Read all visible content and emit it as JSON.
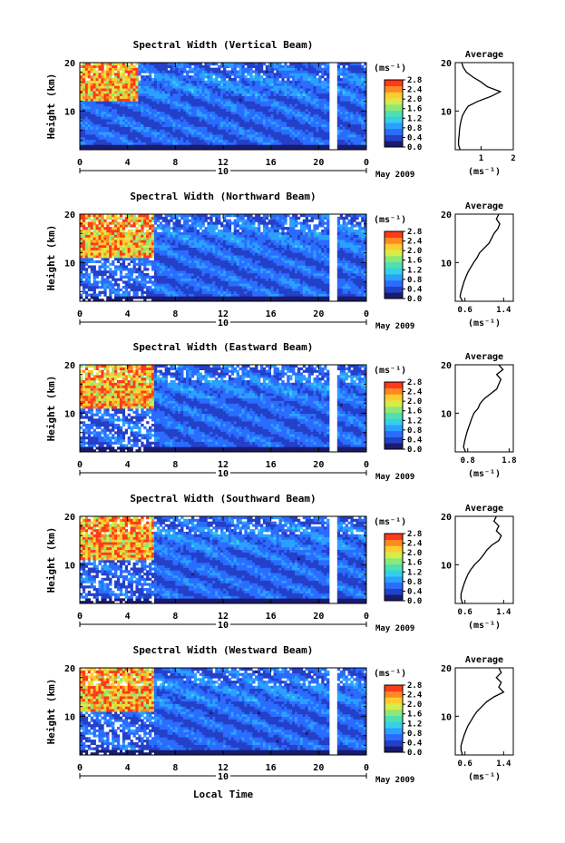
{
  "figure": {
    "xlabel": "Local Time",
    "month_label": "May 2009",
    "day_label": "10"
  },
  "colorbar": {
    "unit": "(ms⁻¹)",
    "ticks": [
      "2.8",
      "2.4",
      "2.0",
      "1.6",
      "1.2",
      "0.8",
      "0.4",
      "0.0"
    ],
    "colors": [
      "#1a1a6e",
      "#2340c8",
      "#2b6cff",
      "#2aa0ff",
      "#34d0e8",
      "#4fe0b0",
      "#8ee878",
      "#d8ec48",
      "#ffcc30",
      "#ff8a20",
      "#ff3a1a"
    ]
  },
  "chart_data": [
    {
      "type": "heatmap",
      "title": "Spectral Width (Vertical Beam)",
      "ylabel": "Height (km)",
      "xlabel": "Local Time",
      "x_ticks": [
        "0",
        "4",
        "8",
        "12",
        "16",
        "20",
        "0"
      ],
      "y_ticks": [
        "10",
        "20"
      ],
      "xlim": [
        0,
        24
      ],
      "ylim": [
        2,
        20
      ],
      "colorbar_range": [
        0.0,
        2.8
      ],
      "profile": {
        "title": "Average",
        "x_ticks": [
          "1",
          "2"
        ],
        "xlim": [
          0.2,
          2.0
        ],
        "xlabel": "(ms⁻¹)",
        "heights": [
          2,
          3,
          4,
          5,
          6,
          7,
          8,
          9,
          10,
          11,
          12,
          13,
          14,
          15,
          16,
          17,
          18,
          19,
          20
        ],
        "values": [
          0.35,
          0.3,
          0.3,
          0.32,
          0.33,
          0.35,
          0.38,
          0.42,
          0.5,
          0.6,
          0.9,
          1.3,
          1.6,
          1.2,
          1.0,
          0.75,
          0.55,
          0.45,
          0.4
        ]
      }
    },
    {
      "type": "heatmap",
      "title": "Spectral Width (Northward Beam)",
      "ylabel": "Height (km)",
      "xlabel": "Local Time",
      "x_ticks": [
        "0",
        "4",
        "8",
        "12",
        "16",
        "20",
        "0"
      ],
      "y_ticks": [
        "10",
        "20"
      ],
      "xlim": [
        0,
        24
      ],
      "ylim": [
        2,
        20
      ],
      "colorbar_range": [
        0.0,
        2.8
      ],
      "profile": {
        "title": "Average",
        "x_ticks": [
          "0.6",
          "1.4"
        ],
        "xlim": [
          0.4,
          1.6
        ],
        "xlabel": "(ms⁻¹)",
        "heights": [
          2,
          3,
          4,
          5,
          6,
          7,
          8,
          9,
          10,
          11,
          12,
          13,
          14,
          15,
          16,
          17,
          18,
          19,
          20
        ],
        "values": [
          0.55,
          0.5,
          0.52,
          0.55,
          0.58,
          0.62,
          0.66,
          0.72,
          0.78,
          0.85,
          0.9,
          1.0,
          1.1,
          1.15,
          1.2,
          1.28,
          1.32,
          1.25,
          1.3
        ]
      }
    },
    {
      "type": "heatmap",
      "title": "Spectral Width (Eastward Beam)",
      "ylabel": "Height (km)",
      "xlabel": "Local Time",
      "x_ticks": [
        "0",
        "4",
        "8",
        "12",
        "16",
        "20",
        "0"
      ],
      "y_ticks": [
        "10",
        "20"
      ],
      "xlim": [
        0,
        24
      ],
      "ylim": [
        2,
        20
      ],
      "colorbar_range": [
        0.0,
        2.8
      ],
      "profile": {
        "title": "Average",
        "x_ticks": [
          "0.8",
          "1.8"
        ],
        "xlim": [
          0.5,
          1.9
        ],
        "xlabel": "(ms⁻¹)",
        "heights": [
          2,
          3,
          4,
          5,
          6,
          7,
          8,
          9,
          10,
          11,
          12,
          13,
          14,
          15,
          16,
          17,
          18,
          19,
          20
        ],
        "values": [
          0.75,
          0.7,
          0.72,
          0.75,
          0.78,
          0.82,
          0.86,
          0.9,
          0.95,
          1.05,
          1.1,
          1.2,
          1.35,
          1.5,
          1.55,
          1.6,
          1.5,
          1.65,
          1.55
        ]
      }
    },
    {
      "type": "heatmap",
      "title": "Spectral Width (Southward Beam)",
      "ylabel": "Height (km)",
      "xlabel": "Local Time",
      "x_ticks": [
        "0",
        "4",
        "8",
        "12",
        "16",
        "20",
        "0"
      ],
      "y_ticks": [
        "10",
        "20"
      ],
      "xlim": [
        0,
        24
      ],
      "ylim": [
        2,
        20
      ],
      "colorbar_range": [
        0.0,
        2.8
      ],
      "profile": {
        "title": "Average",
        "x_ticks": [
          "0.6",
          "1.4"
        ],
        "xlim": [
          0.4,
          1.6
        ],
        "xlabel": "(ms⁻¹)",
        "heights": [
          2,
          3,
          4,
          5,
          6,
          7,
          8,
          9,
          10,
          11,
          12,
          13,
          14,
          15,
          16,
          17,
          18,
          19,
          20
        ],
        "values": [
          0.55,
          0.52,
          0.52,
          0.55,
          0.58,
          0.62,
          0.66,
          0.72,
          0.8,
          0.9,
          0.98,
          1.05,
          1.15,
          1.3,
          1.35,
          1.25,
          1.3,
          1.2,
          1.25
        ]
      }
    },
    {
      "type": "heatmap",
      "title": "Spectral Width (Westward Beam)",
      "ylabel": "Height (km)",
      "xlabel": "Local Time",
      "x_ticks": [
        "0",
        "4",
        "8",
        "12",
        "16",
        "20",
        "0"
      ],
      "y_ticks": [
        "10",
        "20"
      ],
      "xlim": [
        0,
        24
      ],
      "ylim": [
        2,
        20
      ],
      "colorbar_range": [
        0.0,
        2.8
      ],
      "profile": {
        "title": "Average",
        "x_ticks": [
          "0.6",
          "1.4"
        ],
        "xlim": [
          0.4,
          1.6
        ],
        "xlabel": "(ms⁻¹)",
        "heights": [
          2,
          3,
          4,
          5,
          6,
          7,
          8,
          9,
          10,
          11,
          12,
          13,
          14,
          15,
          16,
          17,
          18,
          19,
          20
        ],
        "values": [
          0.55,
          0.52,
          0.52,
          0.55,
          0.58,
          0.62,
          0.66,
          0.72,
          0.78,
          0.85,
          0.95,
          1.05,
          1.2,
          1.4,
          1.3,
          1.35,
          1.25,
          1.35,
          1.3
        ]
      }
    }
  ]
}
